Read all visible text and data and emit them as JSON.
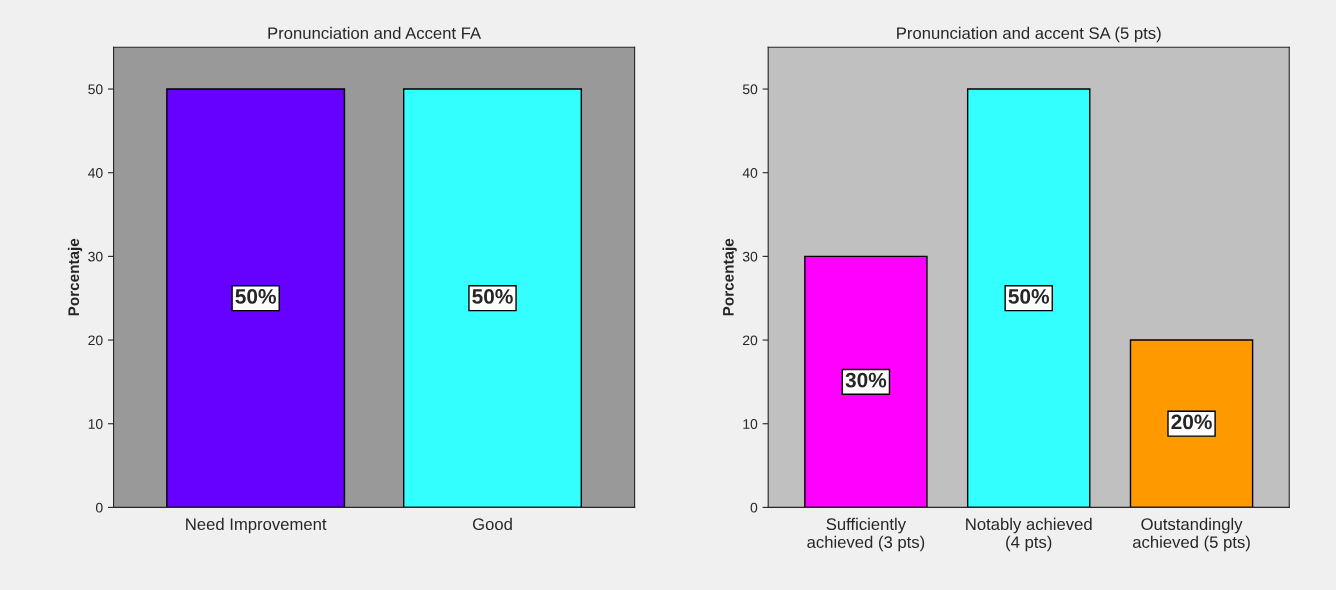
{
  "chart_data": [
    {
      "type": "bar",
      "title": "Pronunciation and Accent FA",
      "ylabel": "Porcentaje",
      "categories": [
        "Need Improvement",
        "Good"
      ],
      "values": [
        50,
        50
      ],
      "colors": [
        "#6600ff",
        "#33ffff"
      ],
      "value_labels": [
        "50%",
        "50%"
      ],
      "ylim": [
        0,
        55
      ],
      "yticks": [
        0,
        10,
        20,
        30,
        40,
        50
      ],
      "grid": false,
      "legend": false
    },
    {
      "type": "bar",
      "title": "Pronunciation and accent SA (5 pts)",
      "ylabel": "Porcentaje",
      "categories": [
        "Sufficiently\nachieved (3 pts)",
        "Notably achieved\n(4 pts)",
        "Outstandingly\nachieved (5 pts)"
      ],
      "values": [
        30,
        50,
        20
      ],
      "colors": [
        "#ff00ff",
        "#33ffff",
        "#ff9900"
      ],
      "value_labels": [
        "30%",
        "50%",
        "20%"
      ],
      "ylim": [
        0,
        55
      ],
      "yticks": [
        0,
        10,
        20,
        30,
        40,
        50
      ],
      "grid": false,
      "legend": false
    }
  ]
}
